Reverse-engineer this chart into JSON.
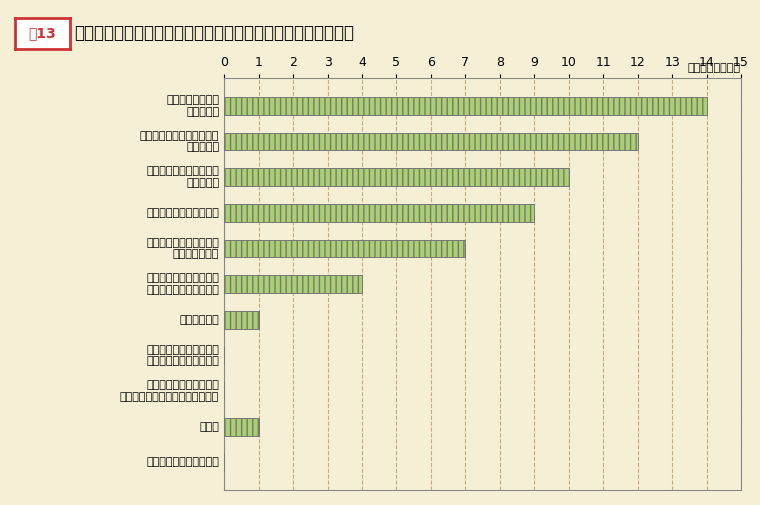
{
  "title_prefix": "図13",
  "title_main": "　従業員数が少ない年齢層があることによる影響（複数回答）",
  "unit_label": "（単位：企業数）",
  "categories": [
    "昇進候補者や幹部\n要員の不足",
    "若年・中堅層への技能継承\nができない",
    "計画的な人事異動・配置\nが行えない",
    "計画的な育成が行えない",
    "従業員数が少ない年齢層\nの業務量の増加",
    "従業員数が少ない年齢層\nのモチベーションの低下",
    "業務の非効率",
    "従業員数が少ない年齢層\n以外の層の業務量の増加",
    "従業員数が少ない年齢層\n以外の層のモチベーションの低下",
    "その他",
    "特に問題を感じていない"
  ],
  "values": [
    14,
    12,
    10,
    9,
    7,
    4,
    1,
    0,
    0,
    1,
    0
  ],
  "bar_color": "#aad070",
  "bar_edge_color": "#777777",
  "background_color": "#f5f0d5",
  "plot_area_color": "#f5f0d5",
  "grid_color": "#c8a87a",
  "xlim": [
    0,
    15
  ],
  "xticks": [
    0,
    1,
    2,
    3,
    4,
    5,
    6,
    7,
    8,
    9,
    10,
    11,
    12,
    13,
    14,
    15
  ],
  "title_fontsize": 12,
  "label_fontsize": 8,
  "tick_fontsize": 9,
  "bar_height": 0.5
}
